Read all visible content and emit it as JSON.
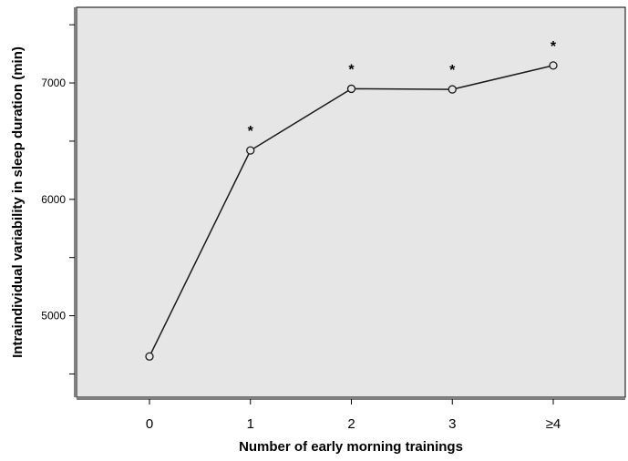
{
  "chart_data": {
    "type": "line",
    "title": "",
    "xlabel": "Number of early morning trainings",
    "ylabel": "Intraindividual variability in sleep duration (min)",
    "categories": [
      "0",
      "1",
      "2",
      "3",
      "≥4"
    ],
    "series": [
      {
        "values": [
          4650,
          6420,
          6950,
          6945,
          7150
        ]
      }
    ],
    "annotations": [
      "",
      "*",
      "*",
      "*",
      "*"
    ],
    "yticks": [
      5000,
      6000,
      7000
    ],
    "ylim": [
      4300,
      7650
    ],
    "grid": false,
    "legend": "none",
    "colors": {
      "plot_background": "#e6e6e6",
      "line": "#1a1a1a",
      "marker_fill": "#e6e6e6"
    }
  }
}
